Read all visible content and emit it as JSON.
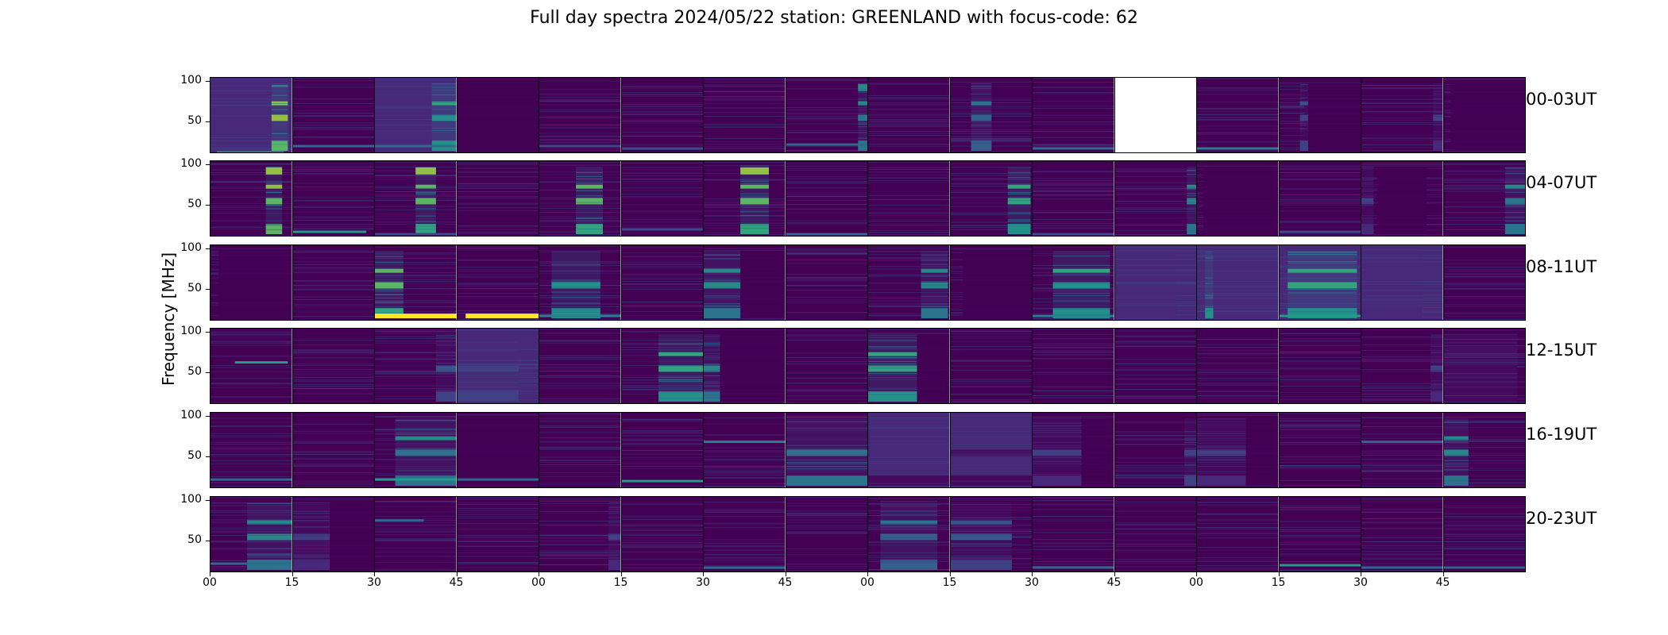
{
  "figure": {
    "title": "Full day spectra 2024/05/22 station: GREENLAND with focus-code: 62",
    "ylabel": "Frequency [MHz]"
  },
  "chart_data": {
    "type": "heatmap",
    "title": "Full day spectra 2024/05/22 station: GREENLAND with focus-code: 62",
    "ylabel": "Frequency [MHz]",
    "ylim": [
      10,
      105
    ],
    "yticks": [
      50,
      100
    ],
    "xtick_labels": [
      "00",
      "15",
      "30",
      "45",
      "00",
      "15",
      "30",
      "45",
      "00",
      "15",
      "30",
      "45",
      "00",
      "15",
      "30",
      "45"
    ],
    "row_labels": [
      "00-03UT",
      "04-07UT",
      "08-11UT",
      "12-15UT",
      "16-19UT",
      "20-23UT"
    ],
    "colormap": [
      "#440154",
      "#482878",
      "#3e4989",
      "#31688e",
      "#26828e",
      "#1f9e89",
      "#35b779",
      "#6ece58",
      "#b5de2b",
      "#fde725"
    ],
    "rows": [
      {
        "label": "00-03UT",
        "panels": [
          {
            "bg": 0.06,
            "rfi": [
              [
                10,
                0.55,
                0.08,
                0.9
              ]
            ],
            "bursts": [
              [
                0.75,
                0.95,
                0.7,
                0.95
              ]
            ]
          },
          {
            "bg": 0.05,
            "rfi": [
              [
                18,
                0.3
              ]
            ]
          },
          {
            "bg": 0.06,
            "rfi": [
              [
                18,
                0.3
              ]
            ],
            "bursts": [
              [
                0.7,
                1.0,
                0.55,
                0.7
              ]
            ]
          },
          {
            "bg": 0.0,
            "quiet": [
              0,
              1
            ]
          },
          {
            "bg": 0.05,
            "rfi": [
              [
                18,
                0.2
              ]
            ]
          },
          {
            "bg": 0.05,
            "rfi": [
              [
                15,
                0.25
              ]
            ]
          },
          {
            "bg": 0.05
          },
          {
            "bg": 0.05,
            "rfi": [
              [
                20,
                0.35
              ]
            ],
            "bursts": [
              [
                0.88,
                1.0,
                0.85,
                0.55
              ]
            ]
          },
          {
            "bg": 0.05
          },
          {
            "bg": 0.05,
            "bursts": [
              [
                0.25,
                0.5,
                0.65,
                0.45
              ]
            ]
          },
          {
            "bg": 0.05,
            "rfi": [
              [
                15,
                0.3
              ]
            ]
          },
          {
            "missing": true
          },
          {
            "bg": 0.05,
            "rfi": [
              [
                15,
                0.4
              ]
            ]
          },
          {
            "bg": 0.05,
            "bursts": [
              [
                0.25,
                0.35,
                0.65,
                0.35
              ]
            ],
            "quiet": [
              0.3,
              1
            ]
          },
          {
            "bg": 0.05,
            "bursts": [
              [
                0.88,
                1.0,
                0.45,
                0.3
              ]
            ]
          },
          {
            "bg": 0.05,
            "quiet": [
              0.08,
              1
            ]
          }
        ]
      },
      {
        "label": "04-07UT",
        "panels": [
          {
            "bg": 0.05,
            "bursts": [
              [
                0.68,
                0.88,
                0.75,
                0.9
              ]
            ]
          },
          {
            "bg": 0.05,
            "rfi": [
              [
                15,
                0.55,
                0,
                0.9
              ]
            ]
          },
          {
            "bg": 0.05,
            "bursts": [
              [
                0.5,
                0.75,
                0.75,
                0.85
              ]
            ],
            "rfi": [
              [
                12,
                0.2
              ]
            ]
          },
          {
            "bg": 0.05
          },
          {
            "bg": 0.05,
            "bursts": [
              [
                0.45,
                0.78,
                0.7,
                0.85
              ]
            ]
          },
          {
            "bg": 0.05,
            "rfi": [
              [
                18,
                0.25
              ]
            ]
          },
          {
            "bg": 0.05,
            "bursts": [
              [
                0.45,
                0.8,
                0.75,
                0.85
              ]
            ]
          },
          {
            "bg": 0.05,
            "rfi": [
              [
                12,
                0.3
              ]
            ]
          },
          {
            "bg": 0.05
          },
          {
            "bg": 0.05,
            "bursts": [
              [
                0.7,
                0.98,
                0.6,
                0.75
              ]
            ]
          },
          {
            "bg": 0.05,
            "rfi": [
              [
                12,
                0.25
              ]
            ]
          },
          {
            "bg": 0.05,
            "bursts": [
              [
                0.88,
                1.0,
                0.55,
                0.6
              ]
            ]
          },
          {
            "bg": 0.02,
            "quiet": [
              0.08,
              1
            ]
          },
          {
            "bg": 0.05,
            "rfi": [
              [
                15,
                0.2
              ]
            ]
          },
          {
            "bg": 0.02,
            "quiet": [
              0.2,
              0.8
            ],
            "bursts": [
              [
                0.0,
                0.15,
                0.5,
                0.3
              ]
            ]
          },
          {
            "bg": 0.05,
            "bursts": [
              [
                0.75,
                1.0,
                0.6,
                0.55
              ]
            ]
          }
        ]
      },
      {
        "label": "08-11UT",
        "panels": [
          {
            "bg": 0.02,
            "quiet": [
              0.1,
              1
            ]
          },
          {
            "bg": 0.05
          },
          {
            "bg": 0.05,
            "bursts": [
              [
                0.0,
                0.35,
                0.65,
                0.85
              ]
            ],
            "rfi": [
              [
                15,
                0.95,
                0,
                1
              ]
            ]
          },
          {
            "bg": 0.05,
            "rfi": [
              [
                15,
                0.95,
                0.1,
                1
              ]
            ]
          },
          {
            "bg": 0.05,
            "bursts": [
              [
                0.15,
                0.75,
                0.5,
                0.7
              ]
            ],
            "rfi": [
              [
                15,
                0.4
              ]
            ]
          },
          {
            "bg": 0.05
          },
          {
            "bg": 0.05,
            "bursts": [
              [
                0.0,
                0.45,
                0.6,
                0.6
              ]
            ],
            "quiet": [
              0.45,
              1
            ]
          },
          {
            "bg": 0.05
          },
          {
            "bg": 0.05,
            "bursts": [
              [
                0.65,
                0.98,
                0.6,
                0.6
              ]
            ]
          },
          {
            "bg": 0.02,
            "quiet": [
              0.15,
              1
            ]
          },
          {
            "bg": 0.05,
            "bursts": [
              [
                0.25,
                0.95,
                0.55,
                0.7
              ]
            ],
            "rfi": [
              [
                15,
                0.45
              ]
            ]
          },
          {
            "bg": 0.12,
            "bursts": [
              [
                0.0,
                0.75,
                0.15,
                0.25
              ]
            ]
          },
          {
            "bg": 0.08,
            "bursts": [
              [
                0.1,
                0.2,
                0.1,
                0.75
              ]
            ]
          },
          {
            "bg": 0.07,
            "bursts": [
              [
                0.1,
                0.95,
                0.55,
                0.75
              ]
            ],
            "rfi": [
              [
                15,
                0.5
              ]
            ]
          },
          {
            "bg": 0.1,
            "bursts": [
              [
                0.0,
                0.75,
                0.2,
                0.25
              ]
            ]
          },
          {
            "bg": 0.05
          }
        ]
      },
      {
        "label": "12-15UT",
        "panels": [
          {
            "bg": 0.05,
            "rfi": [
              [
                62,
                0.5,
                0.3,
                0.95
              ]
            ]
          },
          {
            "bg": 0.05
          },
          {
            "bg": 0.05,
            "bursts": [
              [
                0.75,
                1.0,
                0.4,
                0.4
              ]
            ]
          },
          {
            "bg": 0.07,
            "bursts": [
              [
                0.0,
                0.75,
                0.35,
                0.35
              ]
            ]
          },
          {
            "bg": 0.05
          },
          {
            "bg": 0.05,
            "bursts": [
              [
                0.45,
                1.0,
                0.55,
                0.75
              ]
            ]
          },
          {
            "bg": 0.05,
            "quiet": [
              0.2,
              1
            ],
            "bursts": [
              [
                0.0,
                0.2,
                0.5,
                0.6
              ]
            ]
          },
          {
            "bg": 0.05
          },
          {
            "bg": 0.05,
            "bursts": [
              [
                0.0,
                0.6,
                0.6,
                0.75
              ]
            ],
            "quiet": [
              0.6,
              1
            ]
          },
          {
            "bg": 0.05
          },
          {
            "bg": 0.05
          },
          {
            "bg": 0.05
          },
          {
            "bg": 0.05
          },
          {
            "bg": 0.05
          },
          {
            "bg": 0.05,
            "bursts": [
              [
                0.85,
                1.0,
                0.5,
                0.3
              ]
            ]
          },
          {
            "bg": 0.05,
            "bursts": [
              [
                0.0,
                0.9,
                0.5,
                0.15
              ]
            ]
          }
        ]
      },
      {
        "label": "16-19UT",
        "panels": [
          {
            "bg": 0.05,
            "rfi": [
              [
                20,
                0.3
              ]
            ]
          },
          {
            "bg": 0.05
          },
          {
            "bg": 0.05,
            "bursts": [
              [
                0.25,
                1.0,
                0.55,
                0.55
              ]
            ],
            "rfi": [
              [
                20,
                0.6
              ]
            ]
          },
          {
            "bg": 0.02,
            "quiet": [
              0.0,
              1
            ],
            "rfi": [
              [
                20,
                0.3
              ]
            ]
          },
          {
            "bg": 0.05
          },
          {
            "bg": 0.05,
            "rfi": [
              [
                18,
                0.55,
                0,
                1
              ]
            ]
          },
          {
            "bg": 0.05,
            "rfi": [
              [
                68,
                0.45,
                0,
                1
              ]
            ]
          },
          {
            "bg": 0.05,
            "bursts": [
              [
                0.0,
                1.0,
                0.5,
                0.55
              ]
            ]
          },
          {
            "bg": 0.06,
            "bursts": [
              [
                0.0,
                1.0,
                0.5,
                0.2
              ]
            ]
          },
          {
            "bg": 0.06,
            "bursts": [
              [
                0.0,
                1.0,
                0.5,
                0.15
              ]
            ]
          },
          {
            "bg": 0.05,
            "bursts": [
              [
                0.0,
                0.6,
                0.45,
                0.3
              ]
            ],
            "quiet": [
              0.6,
              1
            ]
          },
          {
            "bg": 0.05,
            "bursts": [
              [
                0.85,
                1.0,
                0.5,
                0.35
              ]
            ]
          },
          {
            "bg": 0.05,
            "bursts": [
              [
                0.0,
                0.6,
                0.5,
                0.3
              ]
            ],
            "quiet": [
              0.6,
              1
            ]
          },
          {
            "bg": 0.05
          },
          {
            "bg": 0.05,
            "rfi": [
              [
                68,
                0.3,
                0,
                1
              ]
            ]
          },
          {
            "bg": 0.05,
            "bursts": [
              [
                0.0,
                0.3,
                0.65,
                0.6
              ]
            ]
          }
        ]
      },
      {
        "label": "20-23UT",
        "panels": [
          {
            "bg": 0.05,
            "bursts": [
              [
                0.45,
                1.0,
                0.7,
                0.6
              ]
            ],
            "rfi": [
              [
                20,
                0.3
              ]
            ]
          },
          {
            "bg": 0.05,
            "bursts": [
              [
                0.0,
                0.45,
                0.45,
                0.3
              ]
            ],
            "quiet": [
              0.45,
              1
            ]
          },
          {
            "bg": 0.05,
            "rfi": [
              [
                75,
                0.3,
                0,
                0.6
              ]
            ]
          },
          {
            "bg": 0.05
          },
          {
            "bg": 0.05,
            "bursts": [
              [
                0.85,
                1.0,
                0.5,
                0.3
              ]
            ]
          },
          {
            "bg": 0.05
          },
          {
            "bg": 0.05,
            "rfi": [
              [
                15,
                0.35
              ]
            ]
          },
          {
            "bg": 0.05
          },
          {
            "bg": 0.05,
            "bursts": [
              [
                0.15,
                0.85,
                0.6,
                0.45
              ]
            ]
          },
          {
            "bg": 0.05,
            "bursts": [
              [
                0.0,
                0.75,
                0.55,
                0.4
              ]
            ]
          },
          {
            "bg": 0.05,
            "rfi": [
              [
                15,
                0.3
              ]
            ]
          },
          {
            "bg": 0.05
          },
          {
            "bg": 0.05
          },
          {
            "bg": 0.05,
            "rfi": [
              [
                18,
                0.5
              ]
            ]
          },
          {
            "bg": 0.05,
            "rfi": [
              [
                15,
                0.3
              ]
            ]
          },
          {
            "bg": 0.05,
            "rfi": [
              [
                15,
                0.3
              ]
            ]
          }
        ]
      }
    ]
  }
}
